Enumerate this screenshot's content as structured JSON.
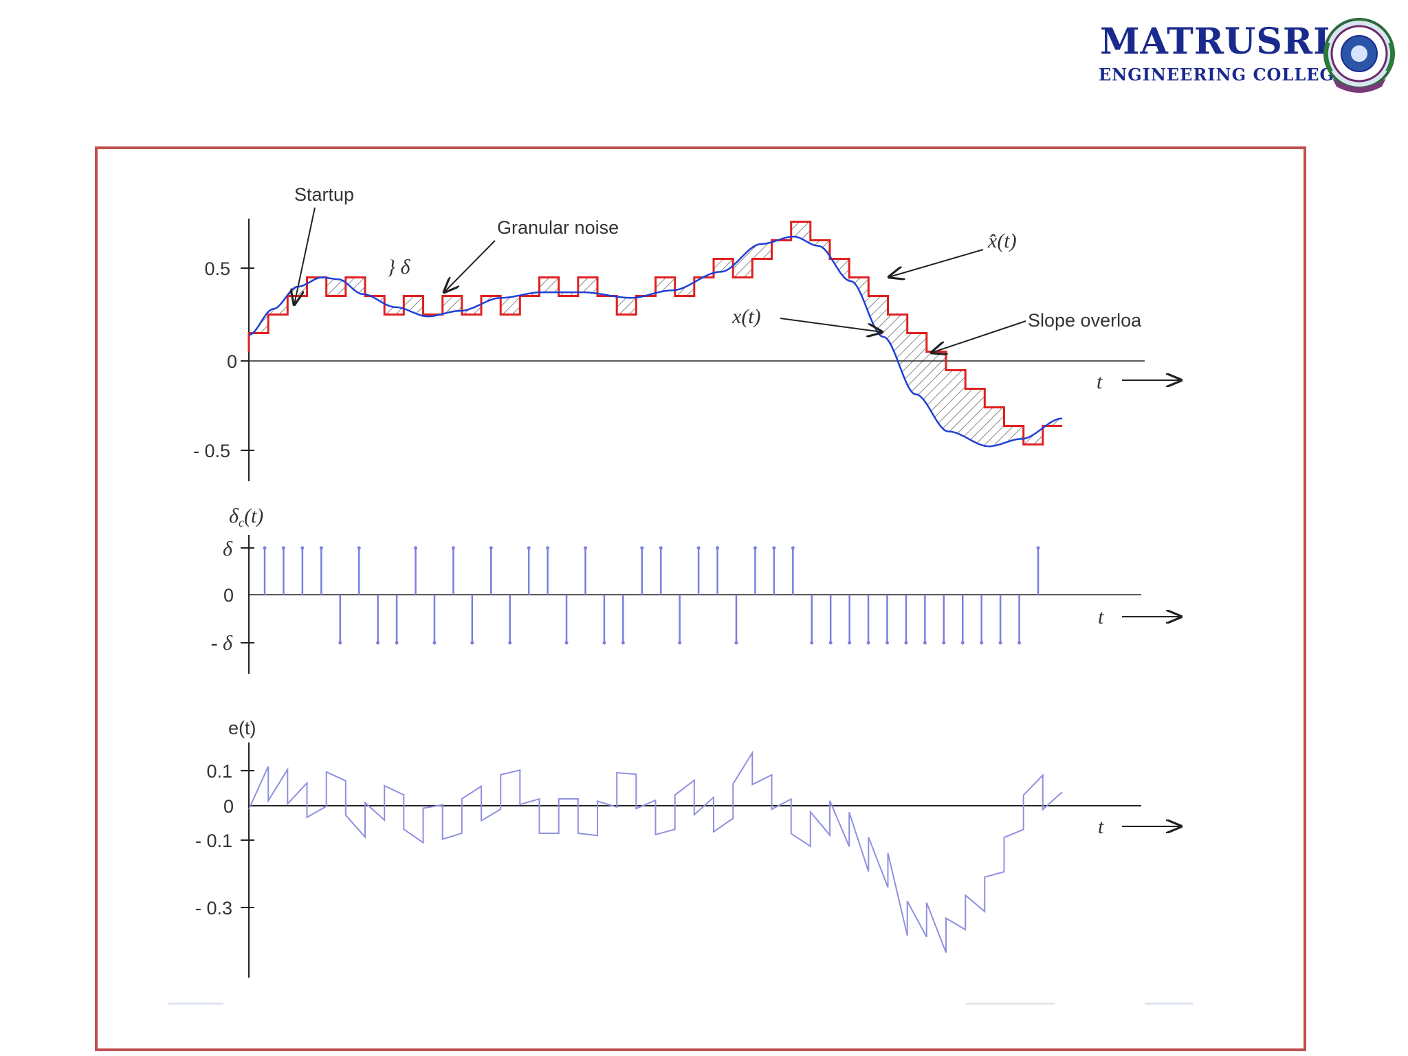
{
  "header": {
    "logo_name": "MATRUSRI",
    "logo_subtitle": "ENGINEERING COLLEGE",
    "brand_color": "#1a2a8c",
    "seal_icon": "college-seal-icon"
  },
  "frame": {
    "border_color": "#c0504d"
  },
  "diagram": {
    "top_panel": {
      "y_ticks": [
        "0.5",
        "0",
        "- 0.5"
      ],
      "annotations": {
        "startup": "Startup",
        "granular_noise": "Granular noise",
        "step_size": "} δ",
        "estimate": "x̂(t)",
        "signal": "x(t)",
        "slope_overload": "Slope overloa",
        "time_axis": "t"
      },
      "colors": {
        "signal": "#1f3fd6",
        "staircase": "#e02020",
        "hatch": "#444444"
      }
    },
    "middle_panel": {
      "ylabel": "δ",
      "ylabel_sub": "c",
      "ylabel_arg": "(t)",
      "y_ticks": [
        "δ",
        "0",
        "- δ"
      ],
      "time_axis": "t",
      "pulse_color": "#7b7fe0"
    },
    "bottom_panel": {
      "ylabel": "e(t)",
      "y_ticks": [
        "0.1",
        "0",
        "- 0.1",
        "- 0.3"
      ],
      "time_axis": "t",
      "error_color": "#8f90e0"
    }
  }
}
